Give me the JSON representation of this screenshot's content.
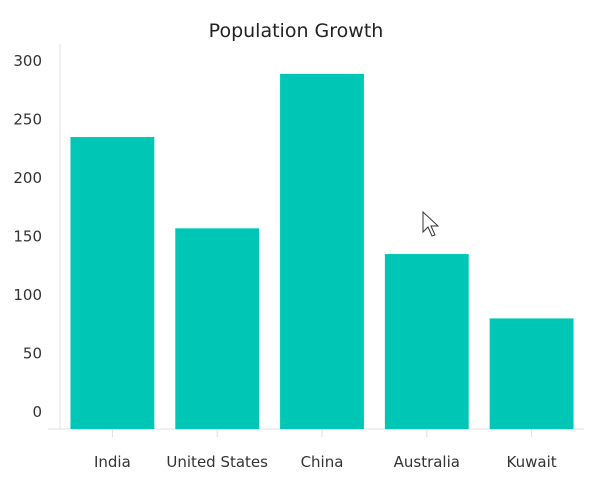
{
  "chart_data": {
    "type": "bar",
    "title": "Population Growth",
    "xlabel": "",
    "ylabel": "",
    "categories": [
      "India",
      "United States",
      "China",
      "Australia",
      "Kuwait"
    ],
    "values": [
      235,
      157,
      289,
      135,
      80
    ],
    "y_ticks": [
      "0",
      "50",
      "100",
      "150",
      "200",
      "250",
      "300"
    ],
    "ylim": [
      0,
      310
    ],
    "grid": false,
    "legend": "none",
    "bar_color": "#00c7b5"
  },
  "cursor": {
    "icon": "mouse-pointer-icon"
  }
}
